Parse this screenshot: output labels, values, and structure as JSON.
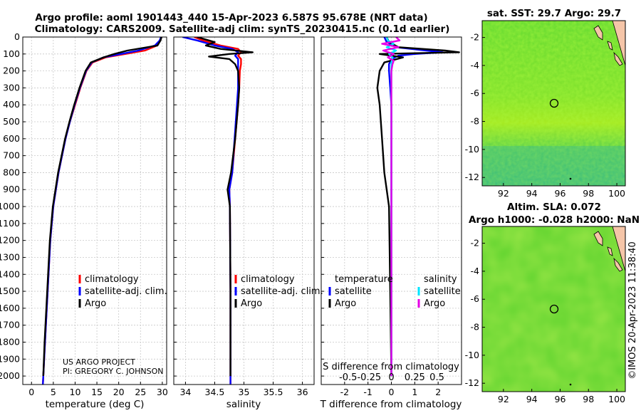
{
  "figure": {
    "title_line1": "Argo profile: aoml 1901443_440 15-Apr-2023 6.587S 95.678E (NRT data)",
    "title_line2": "Climatology: CARS2009. Satellite-adj clim: synTS_20230415.nc (0.1d earlier)",
    "credit_project": "US ARGO PROJECT",
    "credit_pi": "PI: GREGORY C. JOHNSON",
    "imos_stamp": "©IMOS 20-Apr-2023 11:38:40"
  },
  "colors": {
    "climatology": "#ff0000",
    "satellite_adj": "#0000ff",
    "argo": "#000000",
    "sal_satellite": "#00e5ff",
    "sal_argo": "#e600e6",
    "land": "#f5c5a8"
  },
  "legend": {
    "climatology": "climatology",
    "satellite_adj": "satellite-adj. clim.",
    "argo": "Argo",
    "diff_temperature": "temperature",
    "diff_salinity": "salinity",
    "diff_satellite": "satellite",
    "diff_argo": "Argo"
  },
  "chart_data": [
    {
      "type": "line",
      "title": "",
      "xlabel": "temperature (deg C)",
      "ylabel": "",
      "xlim": [
        -2,
        31
      ],
      "ylim": [
        2050,
        0
      ],
      "xticks": [
        0,
        5,
        10,
        15,
        20,
        25,
        30
      ],
      "yticks": [
        0,
        100,
        200,
        300,
        400,
        500,
        600,
        700,
        800,
        900,
        1000,
        1100,
        1200,
        1300,
        1400,
        1500,
        1600,
        1700,
        1800,
        1900,
        2000
      ],
      "series": [
        {
          "name": "climatology",
          "depth": [
            0,
            20,
            50,
            80,
            100,
            120,
            150,
            200,
            300,
            400,
            500,
            600,
            800,
            1000,
            1200,
            1500,
            1800,
            2050
          ],
          "values": [
            29.7,
            29.5,
            28.8,
            26.0,
            21.5,
            17.0,
            14.0,
            12.6,
            11.2,
            10.0,
            8.8,
            7.8,
            6.2,
            5.0,
            4.3,
            3.7,
            3.1,
            2.6
          ]
        },
        {
          "name": "satellite-adj. clim.",
          "depth": [
            0,
            20,
            50,
            80,
            100,
            120,
            150,
            200,
            300,
            400,
            500,
            600,
            800,
            1000,
            1200,
            1500,
            1800,
            2050
          ],
          "values": [
            29.7,
            29.4,
            28.3,
            24.5,
            20.5,
            16.5,
            13.8,
            12.5,
            11.1,
            9.9,
            8.8,
            7.8,
            6.2,
            5.0,
            4.3,
            3.7,
            3.1,
            2.6
          ]
        },
        {
          "name": "Argo",
          "depth": [
            0,
            20,
            50,
            80,
            100,
            120,
            150,
            200,
            300,
            400,
            500,
            600,
            800,
            1000,
            1200,
            1500,
            1800,
            2000
          ],
          "values": [
            29.8,
            29.6,
            28.9,
            22.0,
            19.0,
            16.5,
            13.6,
            12.4,
            11.0,
            9.8,
            8.7,
            7.7,
            6.1,
            4.9,
            4.2,
            3.6,
            3.0,
            2.7
          ]
        }
      ]
    },
    {
      "type": "line",
      "title": "",
      "xlabel": "salinity",
      "ylabel": "",
      "xlim": [
        33.8,
        36.2
      ],
      "ylim": [
        2050,
        0
      ],
      "xticks": [
        34,
        34.5,
        35,
        35.5,
        36
      ],
      "series": [
        {
          "name": "climatology",
          "depth": [
            0,
            20,
            50,
            70,
            90,
            110,
            130,
            160,
            200,
            300,
            400,
            600,
            800,
            900,
            1000,
            1500,
            2050
          ],
          "values": [
            34.15,
            34.3,
            34.6,
            34.9,
            34.95,
            34.9,
            34.95,
            34.95,
            34.93,
            34.92,
            34.9,
            34.85,
            34.8,
            34.75,
            34.76,
            34.77,
            34.77
          ]
        },
        {
          "name": "satellite-adj. clim.",
          "depth": [
            0,
            20,
            50,
            70,
            90,
            110,
            130,
            160,
            200,
            300,
            400,
            600,
            800,
            900,
            1000,
            1500,
            2050
          ],
          "values": [
            33.95,
            34.2,
            34.5,
            34.8,
            34.9,
            34.85,
            34.9,
            34.9,
            34.9,
            34.9,
            34.88,
            34.84,
            34.8,
            34.75,
            34.76,
            34.77,
            34.77
          ]
        },
        {
          "name": "Argo",
          "depth": [
            0,
            30,
            50,
            70,
            90,
            100,
            115,
            130,
            160,
            200,
            300,
            400,
            600,
            800,
            900,
            1000,
            1500,
            2000
          ],
          "values": [
            34.2,
            34.5,
            34.35,
            34.6,
            35.15,
            34.75,
            34.4,
            34.75,
            34.85,
            34.9,
            34.92,
            34.9,
            34.85,
            34.78,
            34.72,
            34.76,
            34.77,
            34.77
          ]
        }
      ]
    },
    {
      "type": "line",
      "title": "",
      "xlabel": "T difference from climatology",
      "ylabel": "",
      "xlim": [
        -3,
        3
      ],
      "ylim": [
        2050,
        0
      ],
      "xticks": [
        -2,
        -1,
        0,
        1,
        2
      ],
      "top_label": "S difference from climatology",
      "top_ticks": [
        "-0.5",
        "-0.25",
        "0",
        "0.25",
        "0.5"
      ],
      "series": [
        {
          "name": "temperature satellite",
          "depth": [
            0,
            30,
            60,
            80,
            90,
            100,
            110,
            130,
            160,
            200,
            300,
            400,
            600,
            800,
            1000,
            1500,
            2000
          ],
          "values": [
            -0.3,
            -0.2,
            0.2,
            1.5,
            2.2,
            1.0,
            0.3,
            0.0,
            -0.1,
            -0.1,
            -0.05,
            0.0,
            0.0,
            0.0,
            0.0,
            0.0,
            0.0
          ]
        },
        {
          "name": "temperature Argo",
          "depth": [
            0,
            30,
            60,
            80,
            90,
            100,
            120,
            150,
            200,
            300,
            400,
            600,
            800,
            900,
            1000,
            1500,
            2000
          ],
          "values": [
            -0.2,
            -0.1,
            0.3,
            2.3,
            2.9,
            -0.5,
            0.5,
            -0.3,
            -0.5,
            -0.6,
            -0.5,
            -0.4,
            -0.3,
            -0.2,
            -0.1,
            -0.05,
            0.0
          ]
        },
        {
          "name": "salinity satellite",
          "depth": [
            0,
            20,
            40,
            60,
            80,
            100,
            120,
            150,
            200,
            300,
            500,
            800,
            1000,
            1500,
            2000
          ],
          "values": [
            -0.2,
            -0.15,
            0.1,
            -0.2,
            0.2,
            -0.1,
            0.05,
            0.0,
            0.0,
            0.0,
            0.0,
            0.0,
            0.0,
            0.0,
            0.0
          ]
        },
        {
          "name": "salinity Argo",
          "depth": [
            0,
            20,
            40,
            60,
            80,
            100,
            120,
            140,
            160,
            200,
            300,
            500,
            800,
            1000,
            1500,
            2000
          ],
          "values": [
            0.2,
            0.35,
            -0.4,
            0.3,
            -0.35,
            0.1,
            -0.15,
            0.1,
            0.05,
            0.0,
            0.0,
            0.0,
            0.0,
            0.0,
            0.0,
            0.0
          ]
        }
      ]
    },
    {
      "type": "heatmap",
      "title": "sat. SST: 29.7 Argo: 29.7",
      "xticks": [
        92,
        94,
        96,
        98,
        100
      ],
      "yticks": [
        -2,
        -4,
        -6,
        -8,
        -10,
        -12
      ],
      "xlim": [
        90.5,
        100.6
      ],
      "ylim": [
        -12.6,
        -0.8
      ],
      "argo_position": {
        "lon": 95.678,
        "lat": -6.587
      }
    },
    {
      "type": "heatmap",
      "title_line1": "Altim. SLA: 0.072",
      "title_line2": "Argo h1000: -0.028 h2000: NaN",
      "xticks": [
        92,
        94,
        96,
        98,
        100
      ],
      "yticks": [
        -2,
        -4,
        -6,
        -8,
        -10,
        -12
      ],
      "xlim": [
        90.5,
        100.6
      ],
      "ylim": [
        -12.6,
        -0.8
      ],
      "argo_position": {
        "lon": 95.678,
        "lat": -6.587
      }
    }
  ]
}
